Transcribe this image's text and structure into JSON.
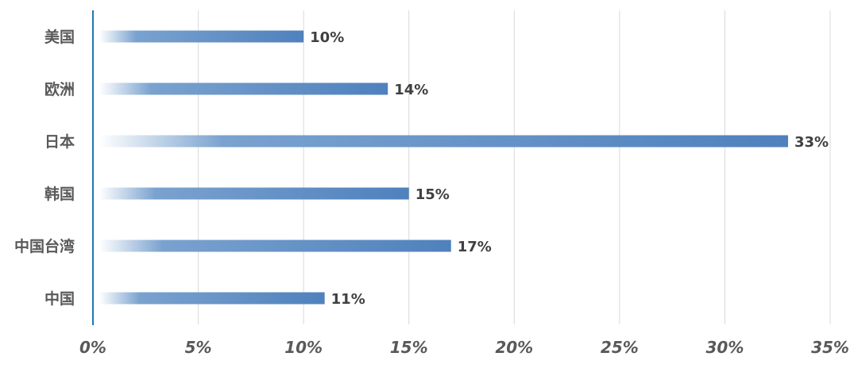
{
  "chart_data": {
    "type": "bar",
    "orientation": "horizontal",
    "categories": [
      "美国",
      "欧洲",
      "日本",
      "韩国",
      "中国台湾",
      "中国"
    ],
    "values": [
      10,
      14,
      33,
      15,
      17,
      11
    ],
    "value_labels": [
      "10%",
      "14%",
      "33%",
      "15%",
      "17%",
      "11%"
    ],
    "xlim": [
      0,
      35
    ],
    "xticks": [
      0,
      5,
      10,
      15,
      20,
      25,
      30,
      35
    ],
    "xtick_labels": [
      "0%",
      "5%",
      "10%",
      "15%",
      "20%",
      "25%",
      "30%",
      "35%"
    ],
    "title": "",
    "xlabel": "",
    "ylabel": "",
    "grid": "vertical",
    "legend": "none"
  },
  "colors": {
    "bar_end": "#4f81bd",
    "bar_mid": "#7aa2cf",
    "bar_start": "#ffffff",
    "axis_line": "#1f77b4",
    "grid": "#d9d9d9",
    "category_text": "#595959",
    "value_text": "#404040",
    "tick_text": "#595959"
  }
}
